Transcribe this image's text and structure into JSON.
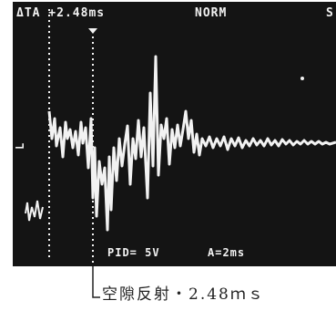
{
  "scope": {
    "delta_readout": "ΔTA +2.48ms",
    "mode": "NORM",
    "corner_char": "S",
    "pin_label": "PID= 5V",
    "time_div": "A=2ms",
    "cursor_a_label": "L"
  },
  "caption": "空隙反射・2.48ｍｓ",
  "colors": {
    "screen": "#141414",
    "trace": "#f2f2f2",
    "caption": "#222222"
  }
}
